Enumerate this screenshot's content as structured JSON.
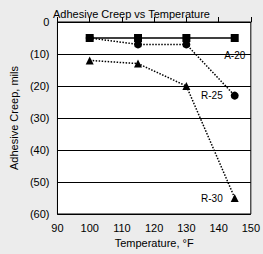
{
  "chart_data": {
    "type": "line",
    "title": "Adhesive Creep vs Temperature",
    "x_label": "Temperature, °F",
    "y_label": "Adhesive Creep, mils",
    "xlim": [
      90,
      150
    ],
    "xticks": [
      90,
      100,
      110,
      120,
      130,
      140,
      150
    ],
    "ylim": [
      -60,
      0
    ],
    "yticks": [
      {
        "value": -60,
        "label": "(60)"
      },
      {
        "value": -50,
        "label": "(50)"
      },
      {
        "value": -40,
        "label": "(40)"
      },
      {
        "value": -30,
        "label": "(30)"
      },
      {
        "value": -20,
        "label": "(20)"
      },
      {
        "value": -10,
        "label": "(10)"
      },
      0
    ],
    "grid": true,
    "series": [
      {
        "name": "A-20",
        "color": "#000000",
        "marker": "square",
        "line_style": "solid",
        "x": [
          100,
          115,
          130,
          145
        ],
        "values": [
          -5,
          -5,
          -5,
          -5
        ]
      },
      {
        "name": "R-25",
        "color": "#000000",
        "marker": "circle",
        "line_style": "dotted",
        "x": [
          100,
          115,
          130,
          145
        ],
        "values": [
          -5,
          -7,
          -7,
          -23
        ]
      },
      {
        "name": "R-30",
        "color": "#000000",
        "marker": "triangle",
        "line_style": "dotted",
        "x": [
          100,
          115,
          130,
          145
        ],
        "values": [
          -12,
          -13,
          -20,
          -55
        ]
      }
    ]
  }
}
